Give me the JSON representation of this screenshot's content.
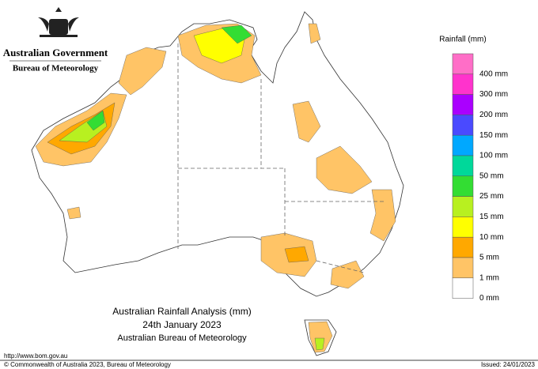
{
  "header": {
    "government": "Australian Government",
    "agency": "Bureau of Meteorology"
  },
  "legend": {
    "title": "Rainfall (mm)",
    "items": [
      {
        "label": "400 mm",
        "color": "#ff6ec7"
      },
      {
        "label": "300 mm",
        "color": "#ff33cc"
      },
      {
        "label": "200 mm",
        "color": "#aa00ff"
      },
      {
        "label": "150 mm",
        "color": "#4a4aff"
      },
      {
        "label": "100 mm",
        "color": "#00a8ff"
      },
      {
        "label": "50 mm",
        "color": "#00d89a"
      },
      {
        "label": "25 mm",
        "color": "#33dd33"
      },
      {
        "label": "15 mm",
        "color": "#b8f020"
      },
      {
        "label": "10 mm",
        "color": "#ffff00"
      },
      {
        "label": "5 mm",
        "color": "#ffa800"
      },
      {
        "label": "1 mm",
        "color": "#ffc466"
      },
      {
        "label": "0 mm",
        "color": "#ffffff"
      }
    ]
  },
  "title": {
    "line1": "Australian Rainfall Analysis (mm)",
    "line2": "24th January 2023",
    "line3": "Australian Bureau of Meteorology"
  },
  "footer": {
    "url": "http://www.bom.gov.au",
    "copyright": "© Commonwealth of Australia 2023, Bureau of Meteorology",
    "issued": "Issued: 24/01/2023"
  }
}
